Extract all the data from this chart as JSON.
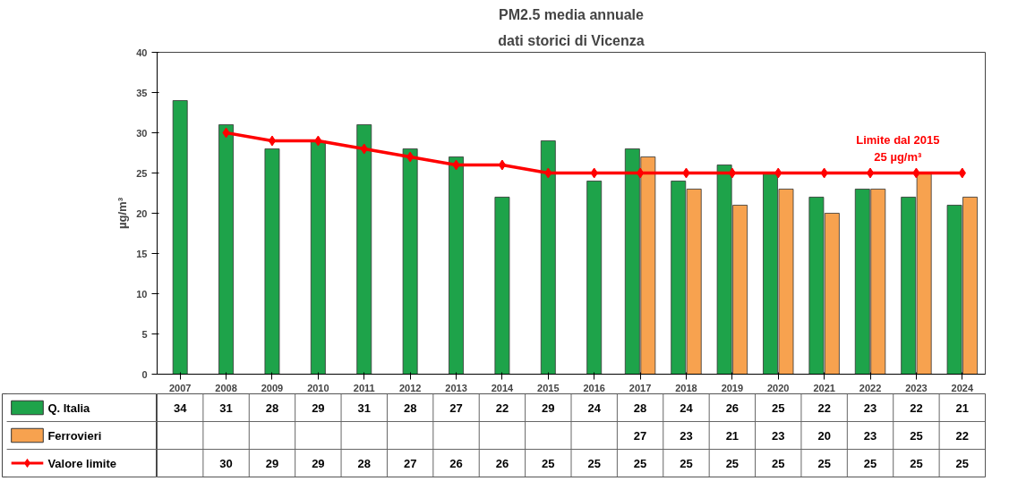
{
  "chart_data": {
    "type": "bar",
    "title": "PM2.5 media annuale",
    "subtitle": "dati storici di Vicenza",
    "ylabel": "µg/m³",
    "categories": [
      "2007",
      "2008",
      "2009",
      "2010",
      "2011",
      "2012",
      "2013",
      "2014",
      "2015",
      "2016",
      "2017",
      "2018",
      "2019",
      "2020",
      "2021",
      "2022",
      "2023",
      "2024"
    ],
    "series": [
      {
        "name": "Q. Italia",
        "color": "#1ea34a",
        "values": [
          34,
          31,
          28,
          29,
          31,
          28,
          27,
          22,
          29,
          24,
          28,
          24,
          26,
          25,
          22,
          23,
          22,
          21
        ]
      },
      {
        "name": "Ferrovieri",
        "color": "#f7a24f",
        "values": [
          null,
          null,
          null,
          null,
          null,
          null,
          null,
          null,
          null,
          null,
          27,
          23,
          21,
          23,
          20,
          23,
          25,
          22
        ]
      },
      {
        "name": "Valore limite",
        "type": "line",
        "color": "#ff0000",
        "marker": "diamond",
        "values": [
          null,
          30,
          29,
          29,
          28,
          27,
          26,
          26,
          25,
          25,
          25,
          25,
          25,
          25,
          25,
          25,
          25,
          25
        ]
      }
    ],
    "ylim": [
      0,
      40
    ],
    "yticks": [
      0,
      5,
      10,
      15,
      20,
      25,
      30,
      35,
      40
    ],
    "grid": false,
    "legend": "bottom left",
    "data_labels": true,
    "annotations": [
      "Limite dal 2015\n25 µg/m³"
    ]
  }
}
